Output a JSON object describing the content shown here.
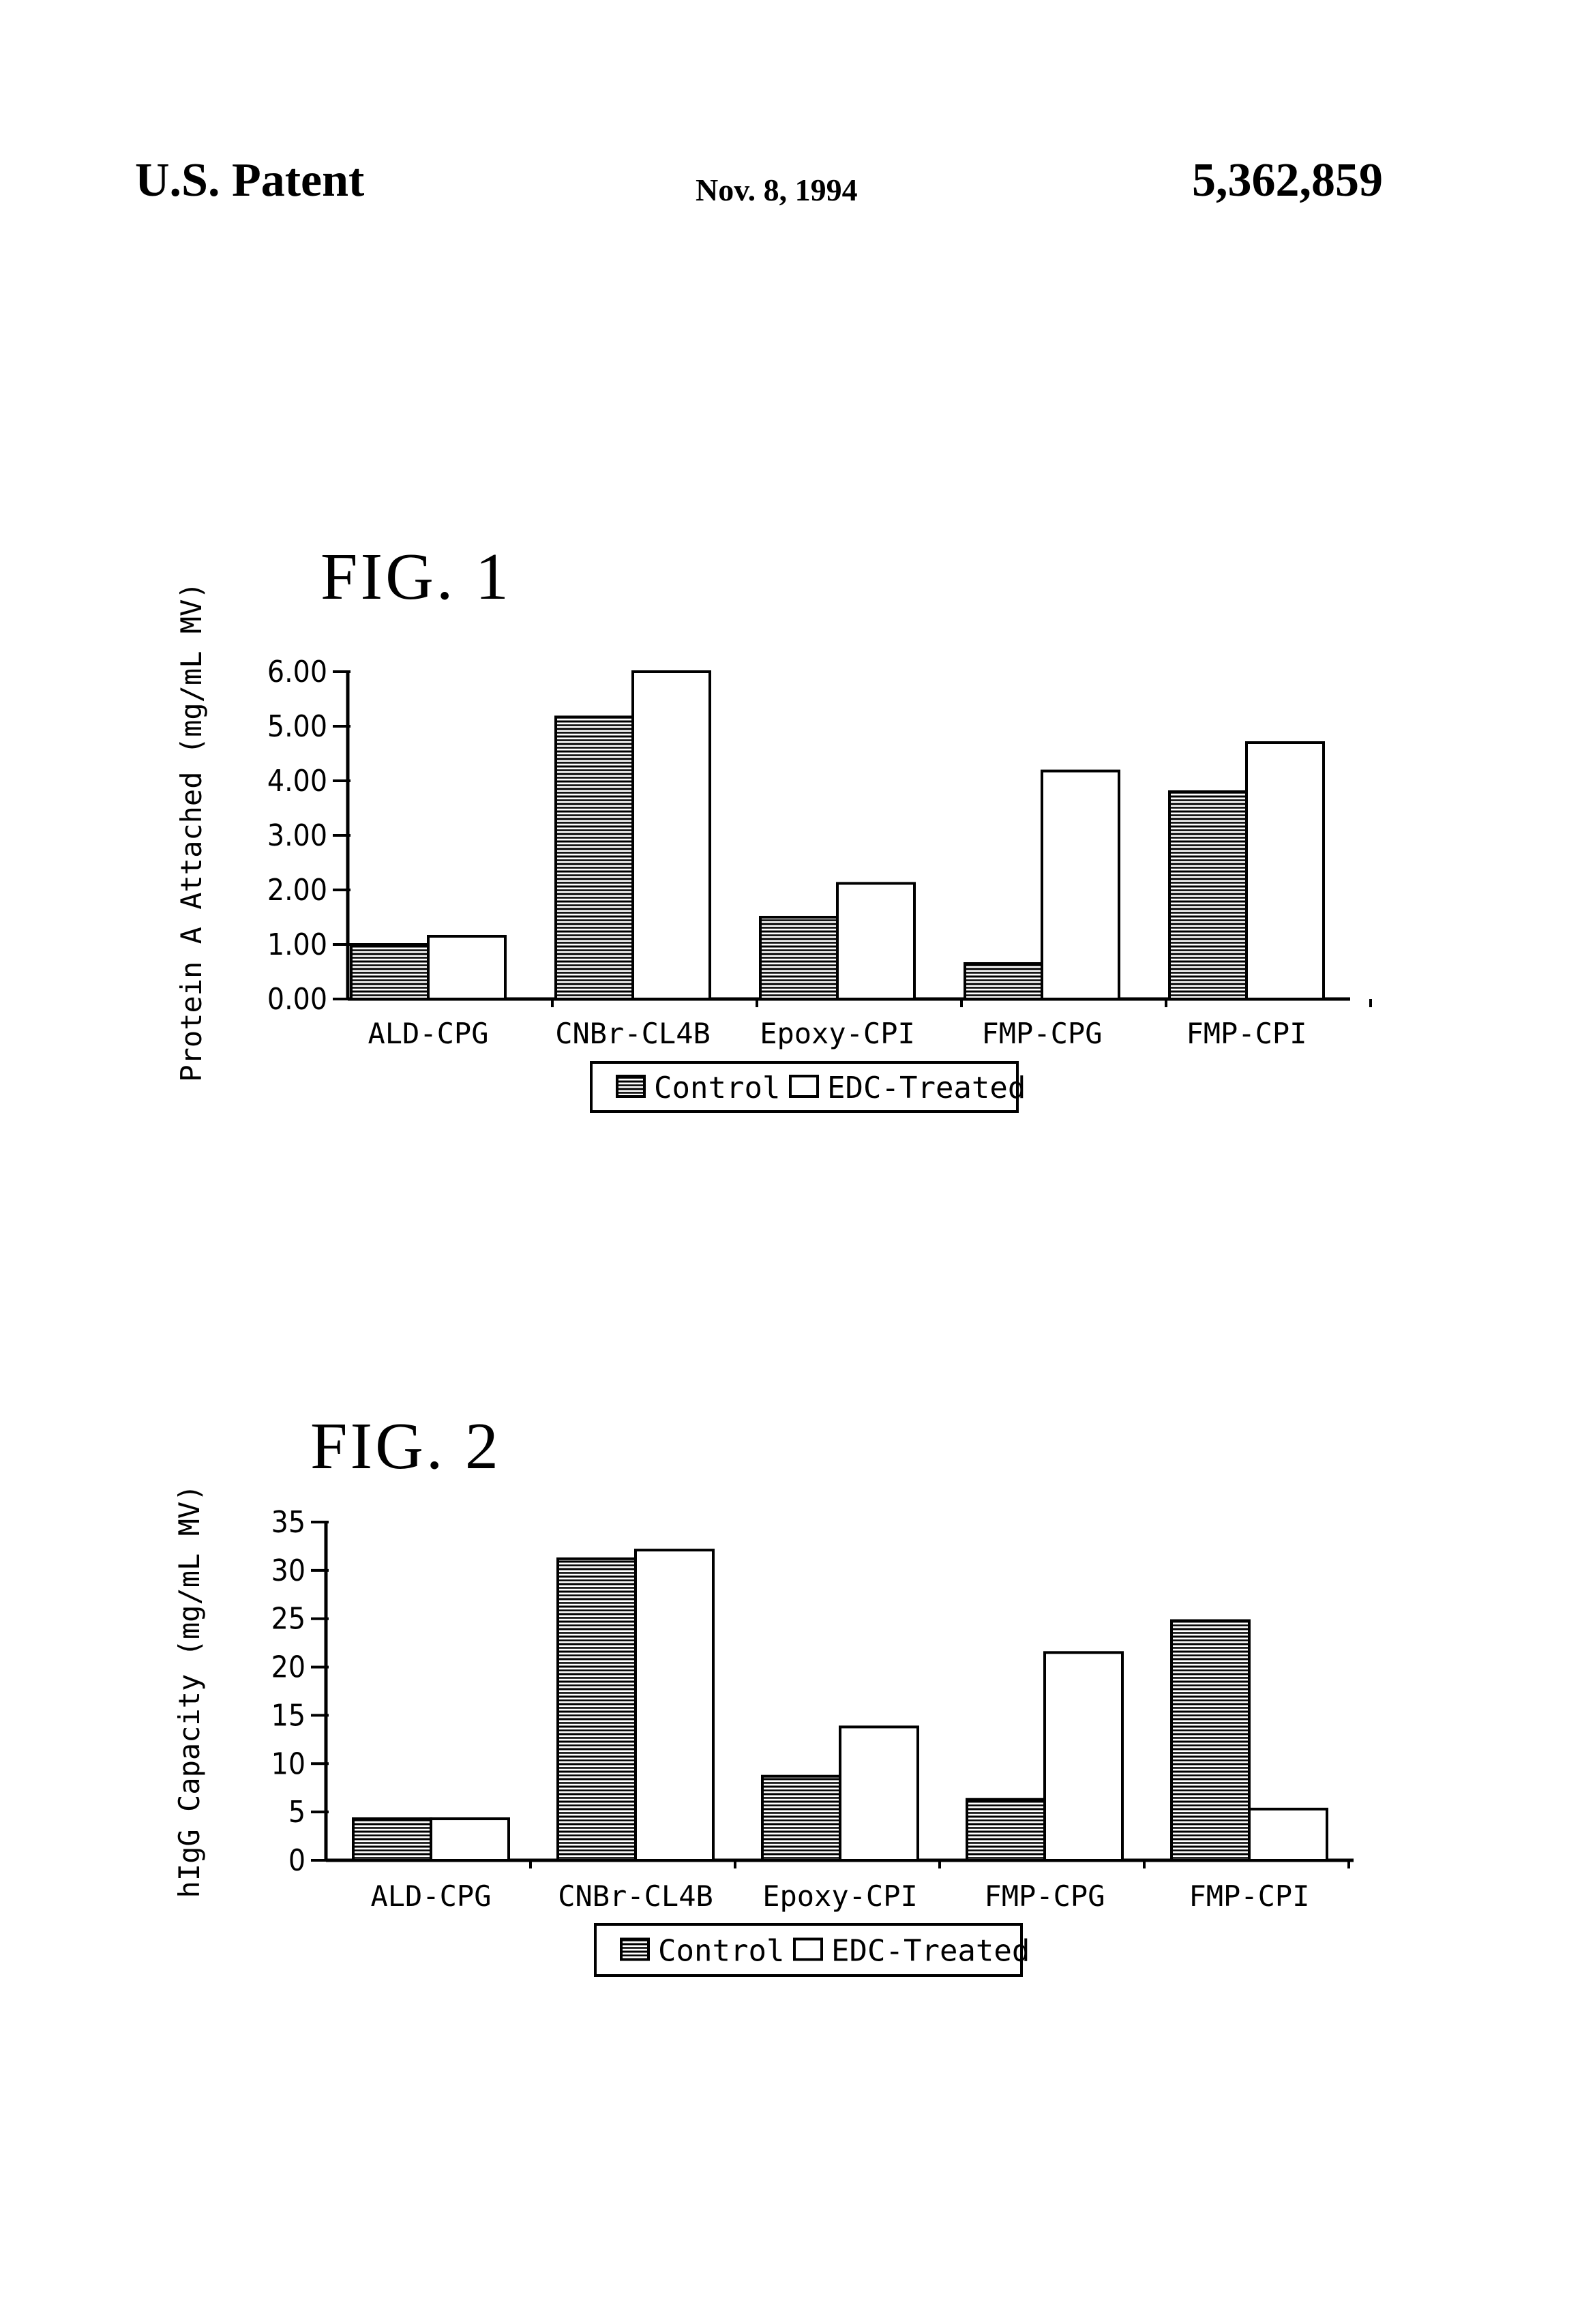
{
  "header": {
    "left": "U.S. Patent",
    "center": "Nov. 8, 1994",
    "right": "5,362,859"
  },
  "chart_data": [
    {
      "type": "bar",
      "title": "FIG. 1",
      "xlabel": "",
      "ylabel": "Protein A Attached (mg/mL MV)",
      "ylim": [
        0,
        6
      ],
      "yticks": [
        "0.00",
        "1.00",
        "2.00",
        "3.00",
        "4.00",
        "5.00",
        "6.00"
      ],
      "categories": [
        "ALD-CPG",
        "CNBr-CL4B",
        "Epoxy-CPI",
        "FMP-CPG",
        "FMP-CPI"
      ],
      "series": [
        {
          "name": "Control",
          "values": [
            1.0,
            5.17,
            1.5,
            0.65,
            3.8
          ],
          "fill": "hatched"
        },
        {
          "name": "EDC-Treated",
          "values": [
            1.15,
            6.0,
            2.12,
            4.18,
            4.7
          ],
          "fill": "white"
        }
      ],
      "legend": "bottom-center",
      "grid": false
    },
    {
      "type": "bar",
      "title": "FIG. 2",
      "xlabel": "",
      "ylabel": "hIgG Capacity (mg/mL MV)",
      "ylim": [
        0,
        35
      ],
      "yticks": [
        "0",
        "5",
        "10",
        "15",
        "20",
        "25",
        "30",
        "35"
      ],
      "categories": [
        "ALD-CPG",
        "CNBr-CL4B",
        "Epoxy-CPI",
        "FMP-CPG",
        "FMP-CPI"
      ],
      "series": [
        {
          "name": "Control",
          "values": [
            4.3,
            31.2,
            8.7,
            6.3,
            24.8
          ],
          "fill": "hatched"
        },
        {
          "name": "EDC-Treated",
          "values": [
            4.3,
            32.1,
            13.8,
            21.5,
            5.3
          ],
          "fill": "white"
        }
      ],
      "legend": "bottom-center",
      "grid": false
    }
  ]
}
